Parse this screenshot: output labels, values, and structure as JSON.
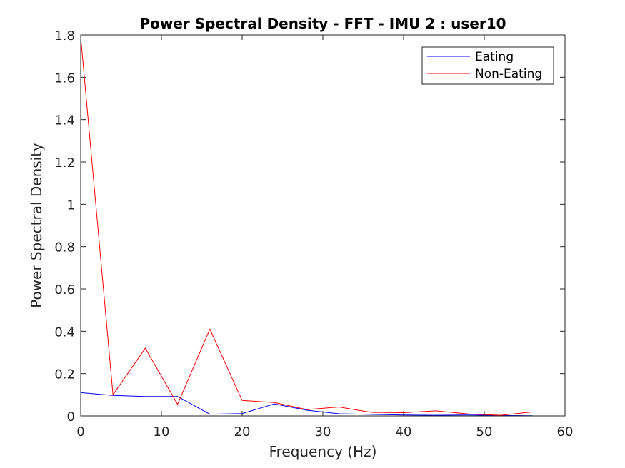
{
  "chart_data": {
    "type": "line",
    "title": "Power Spectral Density - FFT - IMU 2 :  user10",
    "xlabel": "Frequency (Hz)",
    "ylabel": "Power Spectral Density",
    "xlim": [
      0,
      60
    ],
    "ylim": [
      0,
      1.8
    ],
    "xticks": [
      0,
      10,
      20,
      30,
      40,
      50,
      60
    ],
    "yticks": [
      0,
      0.2,
      0.4,
      0.6,
      0.8,
      1,
      1.2,
      1.4,
      1.6,
      1.8
    ],
    "x": [
      0,
      4,
      8,
      12,
      16,
      20,
      24,
      28,
      32,
      36,
      40,
      44,
      48,
      52,
      56
    ],
    "legend_position": "top-right",
    "grid": false,
    "series": [
      {
        "name": "Eating",
        "color": "#0000ff",
        "values": [
          0.11,
          0.097,
          0.092,
          0.092,
          0.008,
          0.011,
          0.057,
          0.027,
          0.01,
          0.007,
          0.004,
          0.003,
          0.004,
          0.002,
          0.001
        ]
      },
      {
        "name": "Non-Eating",
        "color": "#ff0000",
        "values": [
          1.79,
          0.1,
          0.32,
          0.055,
          0.41,
          0.073,
          0.063,
          0.03,
          0.042,
          0.017,
          0.015,
          0.024,
          0.009,
          0.003,
          0.019
        ]
      }
    ]
  }
}
